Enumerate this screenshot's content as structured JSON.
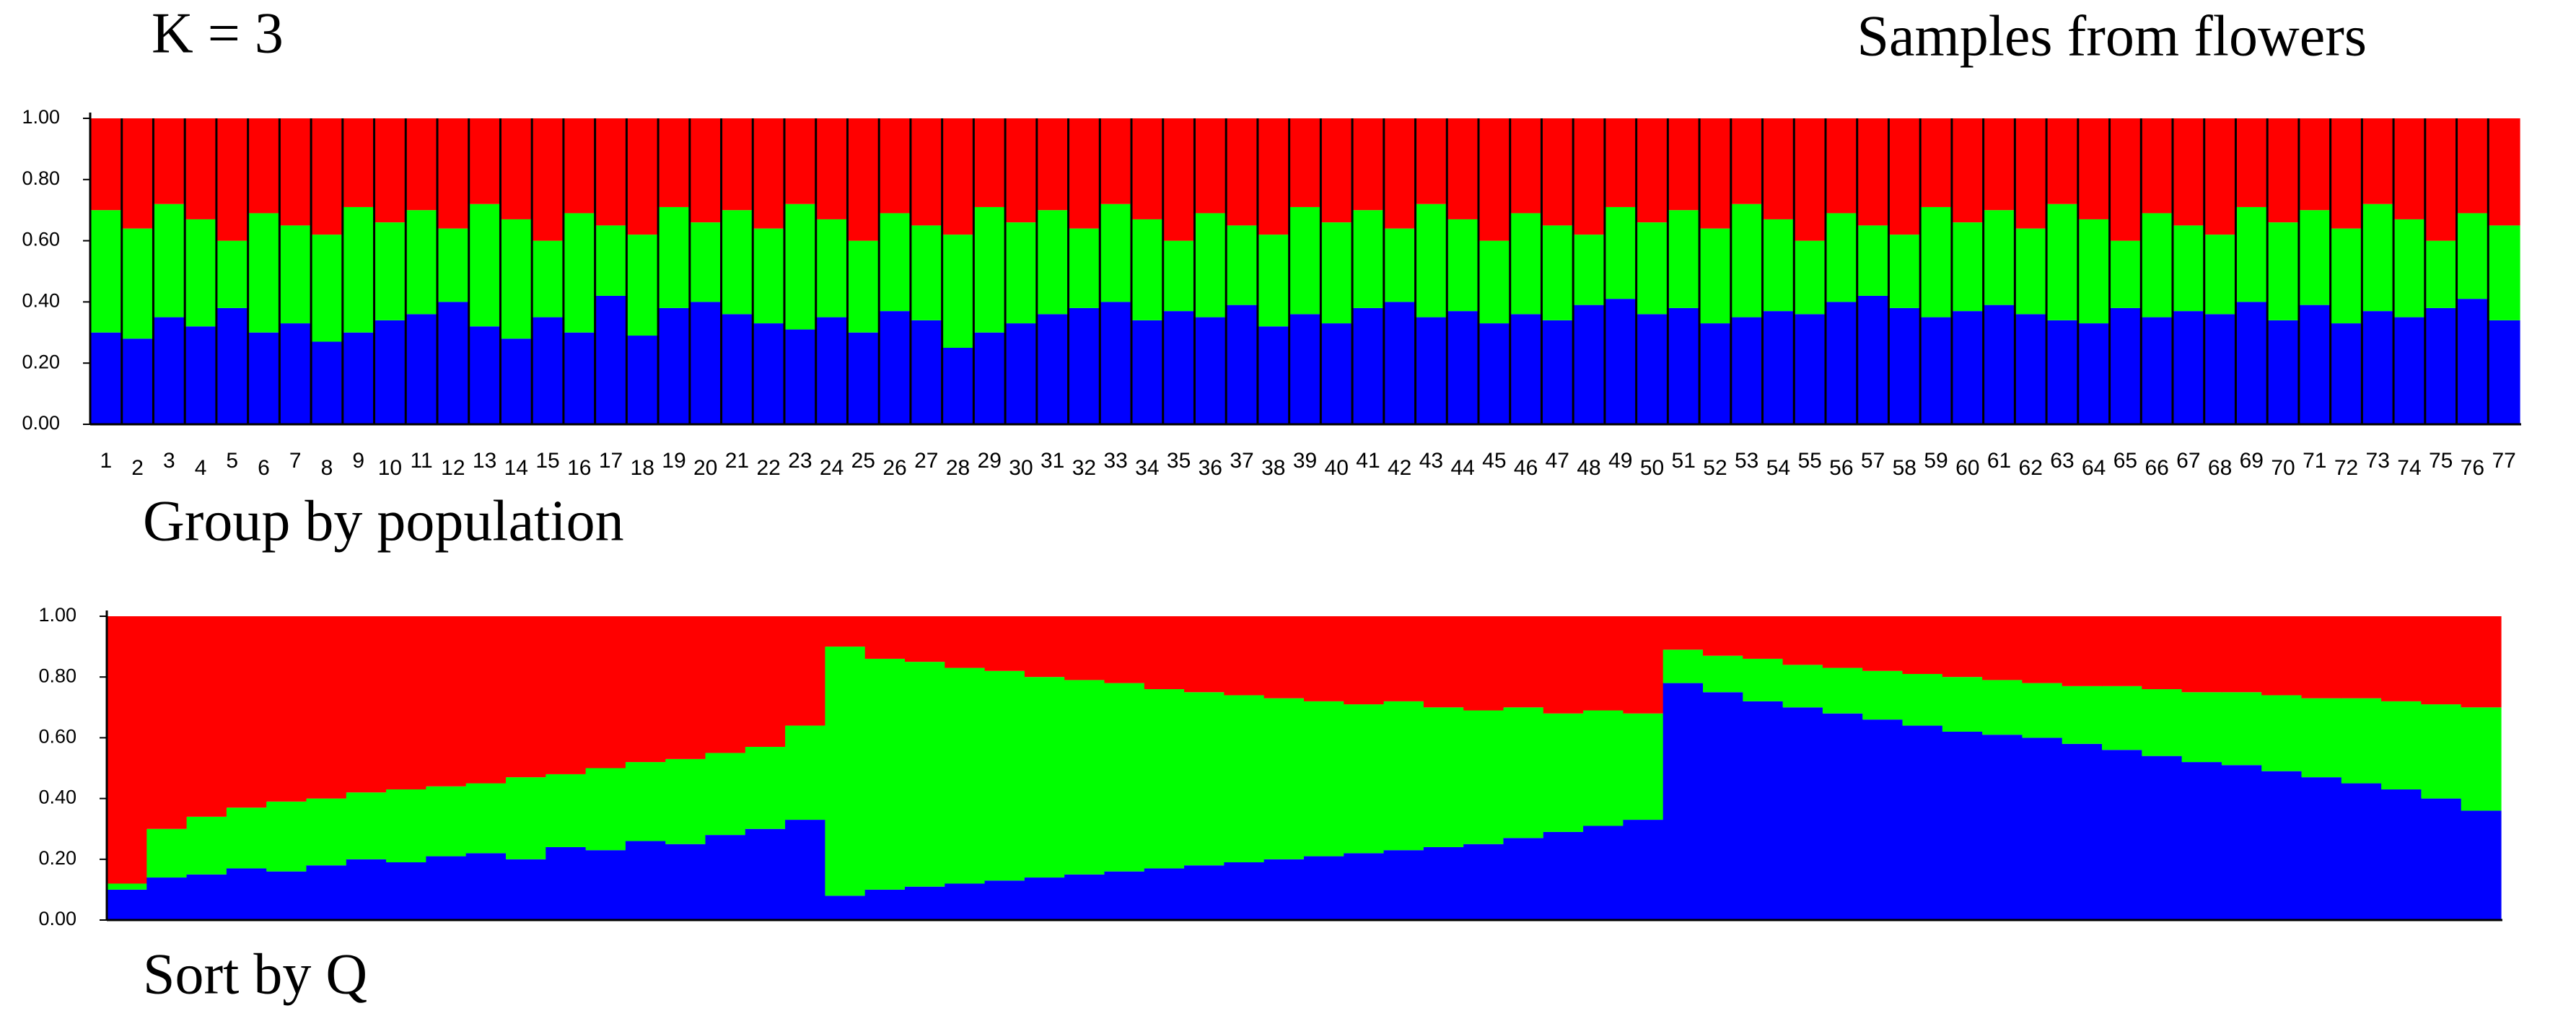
{
  "title": "K = 3",
  "subtitle": "Samples from flowers",
  "chart_data": [
    {
      "type": "bar",
      "stacked": true,
      "separators": true,
      "caption": "Group by population",
      "categories": [
        "1",
        "2",
        "3",
        "4",
        "5",
        "6",
        "7",
        "8",
        "9",
        "10",
        "11",
        "12",
        "13",
        "14",
        "15",
        "16",
        "17",
        "18",
        "19",
        "20",
        "21",
        "22",
        "23",
        "24",
        "25",
        "26",
        "27",
        "28",
        "29",
        "30",
        "31",
        "32",
        "33",
        "34",
        "35",
        "36",
        "37",
        "38",
        "39",
        "40",
        "41",
        "42",
        "43",
        "44",
        "45",
        "46",
        "47",
        "48",
        "49",
        "50",
        "51",
        "52",
        "53",
        "54",
        "55",
        "56",
        "57",
        "58",
        "59",
        "60",
        "61",
        "62",
        "63",
        "64",
        "65",
        "66",
        "67",
        "68",
        "69",
        "70",
        "71",
        "72",
        "73",
        "74",
        "75",
        "76",
        "77"
      ],
      "series": [
        {
          "name": null,
          "color": "#0000ff",
          "values": [
            0.3,
            0.28,
            0.35,
            0.32,
            0.38,
            0.3,
            0.33,
            0.27,
            0.3,
            0.34,
            0.36,
            0.4,
            0.32,
            0.28,
            0.35,
            0.3,
            0.42,
            0.29,
            0.38,
            0.4,
            0.36,
            0.33,
            0.31,
            0.35,
            0.3,
            0.37,
            0.34,
            0.25,
            0.3,
            0.33,
            0.36,
            0.38,
            0.4,
            0.34,
            0.37,
            0.35,
            0.39,
            0.32,
            0.36,
            0.33,
            0.38,
            0.4,
            0.35,
            0.37,
            0.33,
            0.36,
            0.34,
            0.39,
            0.41,
            0.36,
            0.38,
            0.33,
            0.35,
            0.37,
            0.36,
            0.4,
            0.42,
            0.38,
            0.35,
            0.37,
            0.39,
            0.36,
            0.34,
            0.33,
            0.38,
            0.35,
            0.37,
            0.36,
            0.4,
            0.34,
            0.39,
            0.33,
            0.37,
            0.35,
            0.38,
            0.41,
            0.34
          ]
        },
        {
          "name": null,
          "color": "#00ff00",
          "values": [
            0.4,
            0.36,
            0.37,
            0.35,
            0.22,
            0.39,
            0.32,
            0.35,
            0.41,
            0.32,
            0.34,
            0.24,
            0.4,
            0.39,
            0.25,
            0.39,
            0.23,
            0.33,
            0.33,
            0.26,
            0.34,
            0.31,
            0.41,
            0.32,
            0.3,
            0.32,
            0.31,
            0.37,
            0.41,
            0.33,
            0.34,
            0.26,
            0.32,
            0.33,
            0.23,
            0.34,
            0.26,
            0.3,
            0.35,
            0.33,
            0.32,
            0.24,
            0.37,
            0.3,
            0.27,
            0.33,
            0.31,
            0.23,
            0.3,
            0.3,
            0.32,
            0.31,
            0.37,
            0.3,
            0.24,
            0.29,
            0.23,
            0.24,
            0.36,
            0.29,
            0.31,
            0.28,
            0.38,
            0.34,
            0.22,
            0.34,
            0.28,
            0.26,
            0.31,
            0.32,
            0.31,
            0.31,
            0.35,
            0.32,
            0.22,
            0.28,
            0.31
          ]
        },
        {
          "name": null,
          "color": "#ff0000",
          "values": [
            0.3,
            0.36,
            0.28,
            0.33,
            0.4,
            0.31,
            0.35,
            0.38,
            0.29,
            0.34,
            0.3,
            0.36,
            0.28,
            0.33,
            0.4,
            0.31,
            0.35,
            0.38,
            0.29,
            0.34,
            0.3,
            0.36,
            0.28,
            0.33,
            0.4,
            0.31,
            0.35,
            0.38,
            0.29,
            0.34,
            0.3,
            0.36,
            0.28,
            0.33,
            0.4,
            0.31,
            0.35,
            0.38,
            0.29,
            0.34,
            0.3,
            0.36,
            0.28,
            0.33,
            0.4,
            0.31,
            0.35,
            0.38,
            0.29,
            0.34,
            0.3,
            0.36,
            0.28,
            0.33,
            0.4,
            0.31,
            0.35,
            0.38,
            0.29,
            0.34,
            0.3,
            0.36,
            0.28,
            0.33,
            0.4,
            0.31,
            0.35,
            0.38,
            0.29,
            0.34,
            0.3,
            0.36,
            0.28,
            0.33,
            0.4,
            0.31,
            0.35
          ]
        }
      ],
      "ylim": [
        0,
        1
      ],
      "yticks": [
        {
          "value": 0,
          "label": "0.00"
        },
        {
          "value": 0.2,
          "label": "0.20"
        },
        {
          "value": 0.4,
          "label": "0.40"
        },
        {
          "value": 0.6,
          "label": "0.60"
        },
        {
          "value": 0.8,
          "label": "0.80"
        },
        {
          "value": 1,
          "label": "1.00"
        }
      ]
    },
    {
      "type": "bar",
      "stacked": true,
      "separators": false,
      "caption": "Sort by Q",
      "categories": [
        null,
        null,
        null,
        null,
        null,
        null,
        null,
        null,
        null,
        null,
        null,
        null,
        null,
        null,
        null,
        null,
        null,
        null,
        null,
        null,
        null,
        null,
        null,
        null,
        null,
        null,
        null,
        null,
        null,
        null,
        null,
        null,
        null,
        null,
        null,
        null,
        null,
        null,
        null,
        null,
        null,
        null,
        null,
        null,
        null,
        null,
        null,
        null,
        null,
        null,
        null,
        null,
        null,
        null,
        null,
        null,
        null,
        null,
        null,
        null
      ],
      "series": [
        {
          "name": null,
          "color": "#0000ff",
          "values": [
            0.1,
            0.14,
            0.15,
            0.17,
            0.16,
            0.18,
            0.2,
            0.19,
            0.21,
            0.22,
            0.2,
            0.24,
            0.23,
            0.26,
            0.25,
            0.28,
            0.3,
            0.33,
            0.08,
            0.1,
            0.11,
            0.12,
            0.13,
            0.14,
            0.15,
            0.16,
            0.17,
            0.18,
            0.19,
            0.2,
            0.21,
            0.22,
            0.23,
            0.24,
            0.25,
            0.27,
            0.29,
            0.31,
            0.33,
            0.78,
            0.75,
            0.72,
            0.7,
            0.68,
            0.66,
            0.64,
            0.62,
            0.61,
            0.6,
            0.58,
            0.56,
            0.54,
            0.52,
            0.51,
            0.49,
            0.47,
            0.45,
            0.43,
            0.4,
            0.36
          ]
        },
        {
          "name": null,
          "color": "#00ff00",
          "values": [
            0.02,
            0.16,
            0.19,
            0.2,
            0.23,
            0.22,
            0.22,
            0.24,
            0.23,
            0.23,
            0.27,
            0.24,
            0.27,
            0.26,
            0.28,
            0.27,
            0.27,
            0.31,
            0.82,
            0.76,
            0.74,
            0.71,
            0.69,
            0.66,
            0.64,
            0.62,
            0.59,
            0.57,
            0.55,
            0.53,
            0.51,
            0.49,
            0.49,
            0.46,
            0.44,
            0.43,
            0.39,
            0.38,
            0.35,
            0.11,
            0.12,
            0.14,
            0.14,
            0.15,
            0.16,
            0.17,
            0.18,
            0.18,
            0.18,
            0.19,
            0.21,
            0.22,
            0.23,
            0.24,
            0.25,
            0.26,
            0.28,
            0.29,
            0.31,
            0.34
          ]
        },
        {
          "name": null,
          "color": "#ff0000",
          "values": [
            0.88,
            0.7,
            0.66,
            0.63,
            0.61,
            0.6,
            0.58,
            0.57,
            0.56,
            0.55,
            0.53,
            0.52,
            0.5,
            0.48,
            0.47,
            0.45,
            0.43,
            0.36,
            0.1,
            0.14,
            0.15,
            0.17,
            0.18,
            0.2,
            0.21,
            0.22,
            0.24,
            0.25,
            0.26,
            0.27,
            0.28,
            0.29,
            0.28,
            0.3,
            0.31,
            0.3,
            0.32,
            0.31,
            0.32,
            0.11,
            0.13,
            0.14,
            0.16,
            0.17,
            0.18,
            0.19,
            0.2,
            0.21,
            0.22,
            0.23,
            0.23,
            0.24,
            0.25,
            0.25,
            0.26,
            0.27,
            0.27,
            0.28,
            0.29,
            0.3
          ]
        }
      ],
      "ylim": [
        0,
        1
      ],
      "yticks": [
        {
          "value": 0,
          "label": "0.00"
        },
        {
          "value": 0.2,
          "label": "0.20"
        },
        {
          "value": 0.4,
          "label": "0.40"
        },
        {
          "value": 0.6,
          "label": "0.60"
        },
        {
          "value": 0.8,
          "label": "0.80"
        },
        {
          "value": 1,
          "label": "1.00"
        }
      ]
    }
  ]
}
